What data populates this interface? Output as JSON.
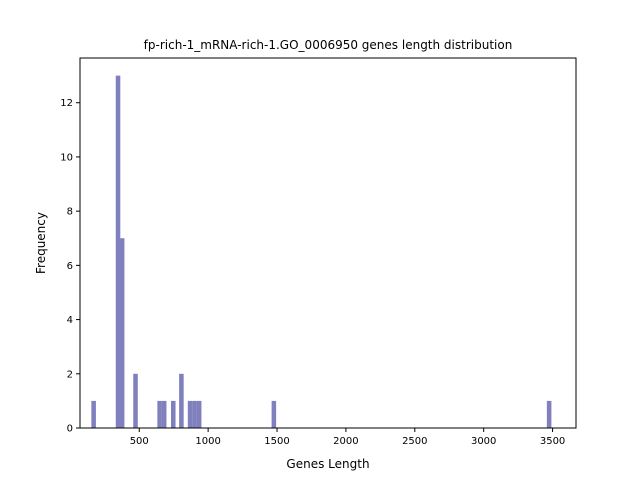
{
  "chart_data": {
    "type": "bar",
    "title": "fp-rich-1_mRNA-rich-1.GO_0006950 genes length distribution",
    "xlabel": "Genes Length",
    "ylabel": "Frequency",
    "xlim": [
      70,
      3670
    ],
    "ylim": [
      0,
      13.65
    ],
    "xticks": [
      500,
      1000,
      1500,
      2000,
      2500,
      3000,
      3500
    ],
    "yticks": [
      0,
      2,
      4,
      6,
      8,
      10,
      12
    ],
    "bin_width": 33,
    "bar_color": "#8080bf",
    "bins": [
      {
        "x": 169,
        "count": 1
      },
      {
        "x": 346,
        "count": 13
      },
      {
        "x": 376,
        "count": 7
      },
      {
        "x": 473,
        "count": 2
      },
      {
        "x": 648,
        "count": 1
      },
      {
        "x": 681,
        "count": 1
      },
      {
        "x": 747,
        "count": 1
      },
      {
        "x": 806,
        "count": 2
      },
      {
        "x": 869,
        "count": 1
      },
      {
        "x": 902,
        "count": 1
      },
      {
        "x": 935,
        "count": 1
      },
      {
        "x": 1477,
        "count": 1
      },
      {
        "x": 3475,
        "count": 1
      }
    ]
  }
}
